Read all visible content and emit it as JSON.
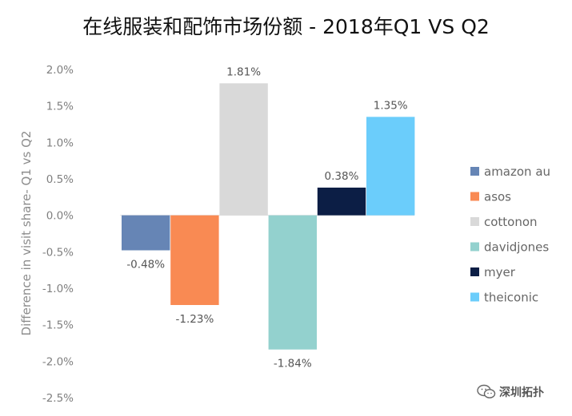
{
  "chart_data": {
    "type": "bar",
    "title": "在线服装和配饰市场份额 - 2018年Q1 VS Q2",
    "ylabel": "Difference in visit share- Q1 vs Q2",
    "xlabel": "",
    "ylim": [
      -2.5,
      2.0
    ],
    "yticks": [
      2.0,
      1.5,
      1.0,
      0.5,
      0.0,
      -0.5,
      -1.0,
      -1.5,
      -2.0,
      -2.5
    ],
    "ytick_labels": [
      "2.0%",
      "1.5%",
      "1.0%",
      "0.5%",
      "0.0%",
      "-0.5%",
      "-1.0%",
      "-1.5%",
      "-2.0%",
      "-2.5%"
    ],
    "grid": false,
    "legend_position": "right",
    "series": [
      {
        "name": "amazon au",
        "value": -0.48,
        "label": "-0.48%",
        "color": "#6685b5"
      },
      {
        "name": "asos",
        "value": -1.23,
        "label": "-1.23%",
        "color": "#f98a53"
      },
      {
        "name": "cottonon",
        "value": 1.81,
        "label": "1.81%",
        "color": "#d9d9d9"
      },
      {
        "name": "davidjones",
        "value": -1.84,
        "label": "-1.84%",
        "color": "#93d1ce"
      },
      {
        "name": "myer",
        "value": 0.38,
        "label": "0.38%",
        "color": "#0c1e45"
      },
      {
        "name": "theiconic",
        "value": 1.35,
        "label": "1.35%",
        "color": "#6bcdfb"
      }
    ]
  },
  "watermark": {
    "text": "深圳拓扑",
    "icon": "wechat-icon",
    "color": "#555555"
  }
}
